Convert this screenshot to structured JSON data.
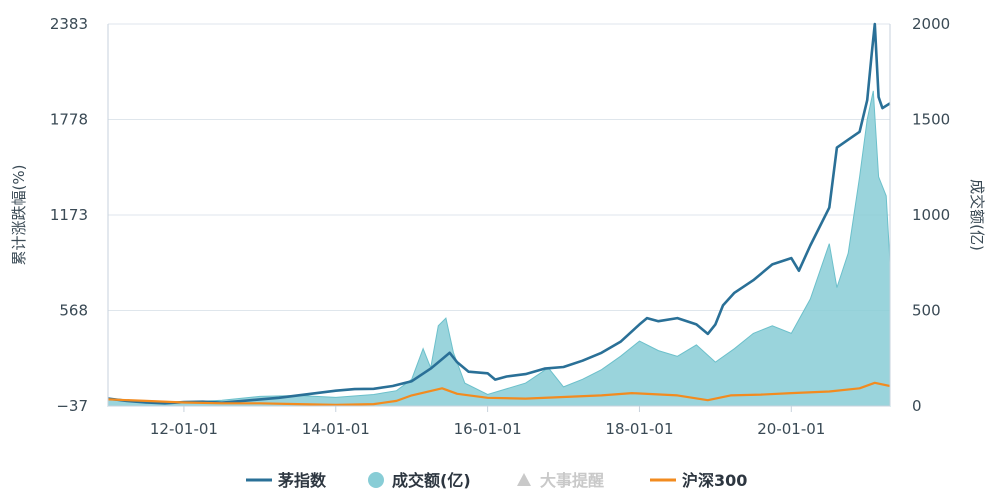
{
  "chart_data": {
    "type": "line",
    "left_axis": {
      "title": "累计涨跌幅(%)",
      "ticks": [
        "2383",
        "1778",
        "1173",
        "568",
        "−37"
      ],
      "tick_values": [
        2383,
        1778,
        1173,
        568,
        -37
      ],
      "range": [
        -37,
        2383
      ]
    },
    "right_axis": {
      "title": "成交额(亿)",
      "ticks": [
        "2000",
        "1500",
        "1000",
        "500",
        "0"
      ],
      "tick_values": [
        2000,
        1500,
        1000,
        500,
        0
      ],
      "range": [
        0,
        2000
      ]
    },
    "x_axis": {
      "ticks": [
        "12-01-01",
        "14-01-01",
        "16-01-01",
        "18-01-01",
        "20-01-01"
      ],
      "tick_values": [
        2012.0,
        2014.0,
        2016.0,
        2018.0,
        2020.0
      ],
      "range": [
        2011.0,
        2021.3
      ]
    },
    "grid": true,
    "legend_position": "bottom",
    "series": [
      {
        "name": "茅指数",
        "color": "#2a7097",
        "axis": "left",
        "points": [
          [
            2011.0,
            10
          ],
          [
            2011.25,
            -5
          ],
          [
            2011.5,
            -15
          ],
          [
            2011.75,
            -20
          ],
          [
            2012.0,
            -12
          ],
          [
            2012.25,
            -10
          ],
          [
            2012.5,
            -16
          ],
          [
            2012.75,
            -6
          ],
          [
            2013.0,
            5
          ],
          [
            2013.25,
            15
          ],
          [
            2013.5,
            30
          ],
          [
            2013.75,
            45
          ],
          [
            2014.0,
            60
          ],
          [
            2014.25,
            70
          ],
          [
            2014.5,
            72
          ],
          [
            2014.75,
            90
          ],
          [
            2015.0,
            120
          ],
          [
            2015.25,
            200
          ],
          [
            2015.4,
            260
          ],
          [
            2015.5,
            300
          ],
          [
            2015.6,
            240
          ],
          [
            2015.75,
            180
          ],
          [
            2016.0,
            170
          ],
          [
            2016.1,
            130
          ],
          [
            2016.25,
            150
          ],
          [
            2016.5,
            165
          ],
          [
            2016.75,
            200
          ],
          [
            2017.0,
            210
          ],
          [
            2017.25,
            250
          ],
          [
            2017.5,
            300
          ],
          [
            2017.75,
            370
          ],
          [
            2018.0,
            480
          ],
          [
            2018.1,
            520
          ],
          [
            2018.25,
            500
          ],
          [
            2018.5,
            520
          ],
          [
            2018.75,
            480
          ],
          [
            2018.9,
            420
          ],
          [
            2019.0,
            480
          ],
          [
            2019.1,
            600
          ],
          [
            2019.25,
            680
          ],
          [
            2019.5,
            760
          ],
          [
            2019.75,
            860
          ],
          [
            2020.0,
            900
          ],
          [
            2020.1,
            820
          ],
          [
            2020.25,
            980
          ],
          [
            2020.5,
            1220
          ],
          [
            2020.6,
            1600
          ],
          [
            2020.75,
            1650
          ],
          [
            2020.9,
            1700
          ],
          [
            2021.0,
            1900
          ],
          [
            2021.06,
            2200
          ],
          [
            2021.1,
            2383
          ],
          [
            2021.15,
            1920
          ],
          [
            2021.2,
            1850
          ],
          [
            2021.3,
            1880
          ]
        ]
      },
      {
        "name": "成交额(亿)",
        "color": "#88cdd6",
        "axis": "right",
        "points": [
          [
            2011.0,
            40
          ],
          [
            2011.5,
            25
          ],
          [
            2012.0,
            20
          ],
          [
            2012.5,
            30
          ],
          [
            2013.0,
            50
          ],
          [
            2013.5,
            55
          ],
          [
            2014.0,
            45
          ],
          [
            2014.5,
            60
          ],
          [
            2014.8,
            80
          ],
          [
            2015.0,
            140
          ],
          [
            2015.15,
            300
          ],
          [
            2015.25,
            200
          ],
          [
            2015.35,
            420
          ],
          [
            2015.45,
            460
          ],
          [
            2015.55,
            280
          ],
          [
            2015.7,
            120
          ],
          [
            2016.0,
            60
          ],
          [
            2016.5,
            120
          ],
          [
            2016.8,
            200
          ],
          [
            2017.0,
            100
          ],
          [
            2017.25,
            140
          ],
          [
            2017.5,
            190
          ],
          [
            2017.75,
            260
          ],
          [
            2018.0,
            340
          ],
          [
            2018.25,
            290
          ],
          [
            2018.5,
            260
          ],
          [
            2018.75,
            320
          ],
          [
            2019.0,
            230
          ],
          [
            2019.25,
            300
          ],
          [
            2019.5,
            380
          ],
          [
            2019.75,
            420
          ],
          [
            2020.0,
            380
          ],
          [
            2020.25,
            560
          ],
          [
            2020.5,
            850
          ],
          [
            2020.6,
            620
          ],
          [
            2020.75,
            800
          ],
          [
            2020.9,
            1200
          ],
          [
            2021.0,
            1500
          ],
          [
            2021.08,
            1650
          ],
          [
            2021.15,
            1200
          ],
          [
            2021.25,
            1100
          ],
          [
            2021.3,
            750
          ]
        ]
      },
      {
        "name": "大事提醒",
        "color": "#c9c9c9",
        "marker": "triangle",
        "points": []
      },
      {
        "name": "沪深300",
        "color": "#f28b1f",
        "axis": "left",
        "points": [
          [
            2011.0,
            5
          ],
          [
            2011.5,
            -5
          ],
          [
            2012.0,
            -15
          ],
          [
            2012.5,
            -20
          ],
          [
            2013.0,
            -20
          ],
          [
            2013.5,
            -25
          ],
          [
            2014.0,
            -30
          ],
          [
            2014.5,
            -25
          ],
          [
            2014.8,
            -5
          ],
          [
            2015.0,
            30
          ],
          [
            2015.4,
            75
          ],
          [
            2015.6,
            40
          ],
          [
            2016.0,
            15
          ],
          [
            2016.5,
            10
          ],
          [
            2017.0,
            20
          ],
          [
            2017.5,
            30
          ],
          [
            2017.9,
            45
          ],
          [
            2018.5,
            30
          ],
          [
            2018.9,
            0
          ],
          [
            2019.2,
            30
          ],
          [
            2019.6,
            35
          ],
          [
            2020.0,
            45
          ],
          [
            2020.5,
            55
          ],
          [
            2020.9,
            75
          ],
          [
            2021.1,
            110
          ],
          [
            2021.3,
            90
          ]
        ]
      }
    ]
  },
  "legend": {
    "items": [
      {
        "label": "茅指数",
        "color": "#2a7097",
        "icon": "line-marker-icon",
        "disabled": false
      },
      {
        "label": "成交额(亿)",
        "color": "#88cdd6",
        "icon": "circle-icon",
        "disabled": false
      },
      {
        "label": "大事提醒",
        "color": "#c9c9c9",
        "icon": "triangle-icon",
        "disabled": true
      },
      {
        "label": "沪深300",
        "color": "#f28b1f",
        "icon": "line-marker-icon",
        "disabled": false
      }
    ]
  }
}
